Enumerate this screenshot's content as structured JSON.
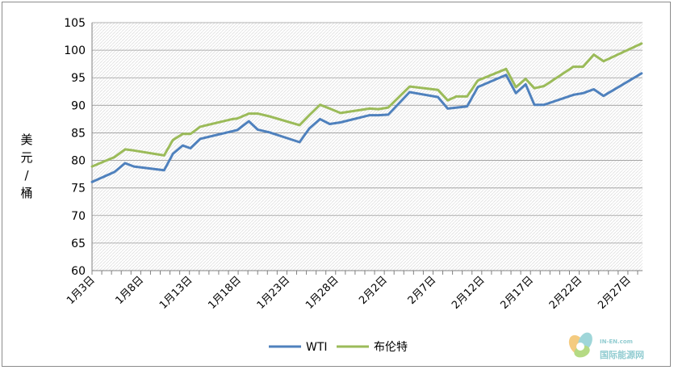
{
  "chart_data": {
    "type": "line",
    "title": "",
    "ylabel": "美元/桶",
    "xlabel": "",
    "ylim": [
      60,
      105
    ],
    "yticks": [
      60,
      65,
      70,
      75,
      80,
      85,
      90,
      95,
      100,
      105
    ],
    "grid": "horizontal dashed",
    "legend_position": "bottom",
    "xticks": [
      {
        "label": "1月3日",
        "day": 0
      },
      {
        "label": "1月8日",
        "day": 5
      },
      {
        "label": "1月13日",
        "day": 10
      },
      {
        "label": "1月18日",
        "day": 15
      },
      {
        "label": "1月23日",
        "day": 20
      },
      {
        "label": "1月28日",
        "day": 25
      },
      {
        "label": "2月2日",
        "day": 30
      },
      {
        "label": "2月7日",
        "day": 35
      },
      {
        "label": "2月12日",
        "day": 40
      },
      {
        "label": "2月17日",
        "day": 45
      },
      {
        "label": "2月22日",
        "day": 50
      },
      {
        "label": "2月27日",
        "day": 55
      }
    ],
    "x_range_days": [
      0,
      56.5
    ],
    "series": [
      {
        "name": "WTI",
        "color": "#4f81bd",
        "points": [
          [
            0,
            76.1
          ],
          [
            2.3,
            77.9
          ],
          [
            3.4,
            79.5
          ],
          [
            4.3,
            78.9
          ],
          [
            7.4,
            78.2
          ],
          [
            8.3,
            81.2
          ],
          [
            9.3,
            82.7
          ],
          [
            10.1,
            82.2
          ],
          [
            11.1,
            83.9
          ],
          [
            14.4,
            85.3
          ],
          [
            14.9,
            85.5
          ],
          [
            16.1,
            87.1
          ],
          [
            17.0,
            85.6
          ],
          [
            18.2,
            85.1
          ],
          [
            21.3,
            83.3
          ],
          [
            22.3,
            85.8
          ],
          [
            23.4,
            87.5
          ],
          [
            24.4,
            86.6
          ],
          [
            25.5,
            86.9
          ],
          [
            28.5,
            88.2
          ],
          [
            29.4,
            88.2
          ],
          [
            30.4,
            88.3
          ],
          [
            32.6,
            92.4
          ],
          [
            35.5,
            91.5
          ],
          [
            36.5,
            89.4
          ],
          [
            38.5,
            89.8
          ],
          [
            39.6,
            93.3
          ],
          [
            42.5,
            95.5
          ],
          [
            43.5,
            92.2
          ],
          [
            44.5,
            93.8
          ],
          [
            45.4,
            90.1
          ],
          [
            46.4,
            90.1
          ],
          [
            49.4,
            91.9
          ],
          [
            50.4,
            92.2
          ],
          [
            51.5,
            92.9
          ],
          [
            52.5,
            91.7
          ],
          [
            56.4,
            95.8
          ]
        ]
      },
      {
        "name": "布伦特",
        "color": "#9bbb59",
        "points": [
          [
            0,
            78.9
          ],
          [
            2.3,
            80.6
          ],
          [
            3.4,
            82.0
          ],
          [
            4.3,
            81.8
          ],
          [
            7.4,
            80.9
          ],
          [
            8.3,
            83.7
          ],
          [
            9.3,
            84.8
          ],
          [
            10.1,
            84.8
          ],
          [
            11.1,
            86.1
          ],
          [
            14.4,
            87.5
          ],
          [
            14.9,
            87.6
          ],
          [
            16.1,
            88.5
          ],
          [
            17.0,
            88.5
          ],
          [
            18.2,
            88.0
          ],
          [
            21.3,
            86.4
          ],
          [
            22.3,
            88.2
          ],
          [
            23.4,
            90.1
          ],
          [
            24.4,
            89.4
          ],
          [
            25.5,
            88.6
          ],
          [
            28.5,
            89.4
          ],
          [
            29.4,
            89.3
          ],
          [
            30.4,
            89.6
          ],
          [
            32.6,
            93.4
          ],
          [
            35.5,
            92.8
          ],
          [
            36.5,
            90.9
          ],
          [
            37.4,
            91.6
          ],
          [
            38.5,
            91.6
          ],
          [
            39.6,
            94.5
          ],
          [
            42.5,
            96.6
          ],
          [
            43.5,
            93.3
          ],
          [
            44.5,
            94.8
          ],
          [
            45.4,
            93.1
          ],
          [
            46.4,
            93.5
          ],
          [
            49.4,
            97.0
          ],
          [
            50.4,
            97.0
          ],
          [
            51.5,
            99.2
          ],
          [
            52.5,
            98.0
          ],
          [
            56.4,
            101.2
          ]
        ]
      }
    ]
  },
  "watermark": {
    "text_top": "IN-EN.com",
    "text_main": "国际能源网"
  }
}
